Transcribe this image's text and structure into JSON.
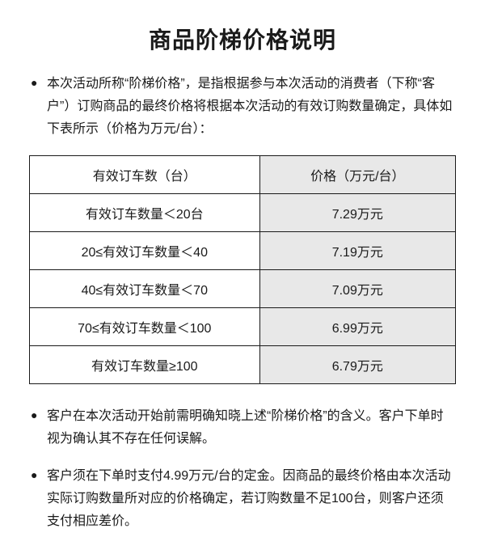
{
  "title": "商品阶梯价格说明",
  "paragraphs": {
    "p1": "本次活动所称“阶梯价格”，是指根据参与本次活动的消费者（下称“客户”）订购商品的最终价格将根据本次活动的有效订购数量确定，具体如下表所示（价格为万元/台）：",
    "p2": "客户在本次活动开始前需明确知晓上述“阶梯价格”的含义。客户下单时视为确认其不存在任何误解。",
    "p3": "客户须在下单时支付4.99万元/台的定金。因商品的最终价格由本次活动实际订购数量所对应的价格确定，若订购数量不足100台，则客户还须支付相应差价。"
  },
  "table": {
    "type": "table",
    "columns": [
      "有效订车数（台）",
      "价格（万元/台）"
    ],
    "rows": [
      [
        "有效订车数量＜20台",
        "7.29万元"
      ],
      [
        "20≤有效订车数量＜40",
        "7.19万元"
      ],
      [
        "40≤有效订车数量＜70",
        "7.09万元"
      ],
      [
        "70≤有效订车数量＜100",
        "6.99万元"
      ],
      [
        "有效订车数量≥100",
        "6.79万元"
      ]
    ],
    "header_bg_price": "#e8e8e8",
    "cell_bg_price": "#e8e8e8",
    "border_color": "#1a1a1a",
    "font_size": 16,
    "col_widths": [
      "54%",
      "46%"
    ]
  },
  "styles": {
    "title_fontsize": 28,
    "body_fontsize": 16,
    "text_color": "#1a1a1a",
    "background_color": "#ffffff"
  }
}
